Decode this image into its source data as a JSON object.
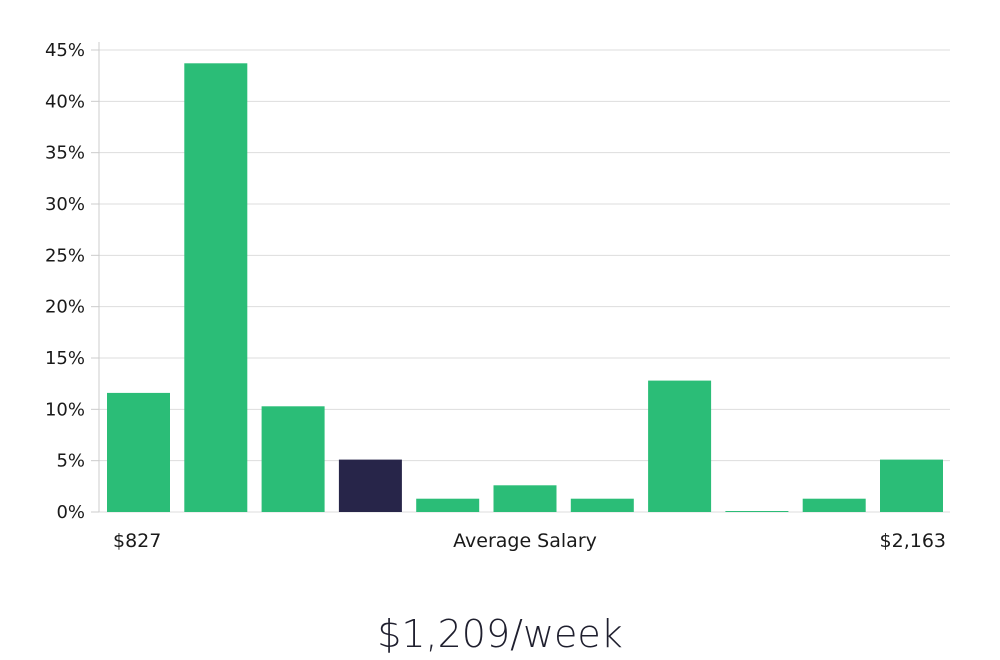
{
  "chart_data": {
    "type": "bar",
    "title": "",
    "x_axis": {
      "left_label": "$827",
      "center_label": "Average Salary",
      "right_label": "$2,163"
    },
    "y_ticks": [
      "0%",
      "5%",
      "10%",
      "15%",
      "20%",
      "25%",
      "30%",
      "35%",
      "40%",
      "45%"
    ],
    "ylim": [
      0,
      45
    ],
    "values": [
      11.6,
      43.7,
      10.3,
      5.1,
      1.3,
      2.6,
      1.3,
      12.8,
      0.1,
      1.3,
      5.1
    ],
    "highlight_index": 3,
    "grid": true,
    "colors": {
      "bar": "#2bbd77",
      "highlight": "#272549",
      "grid": "#dddddd",
      "axis": "#cccccc"
    }
  },
  "headline": "$1,209/week"
}
